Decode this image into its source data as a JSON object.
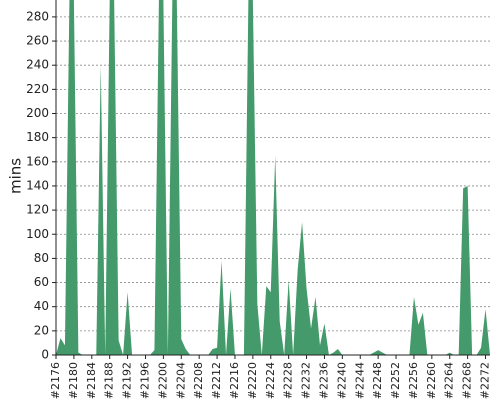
{
  "chart_data": {
    "type": "area",
    "ylabel": "mins",
    "xlabel": "",
    "ylim": [
      0,
      294
    ],
    "y_ticks": [
      0,
      20,
      40,
      60,
      80,
      100,
      120,
      140,
      160,
      180,
      200,
      220,
      240,
      260,
      280
    ],
    "x_tick_labels": [
      "#2176",
      "#2180",
      "#2184",
      "#2188",
      "#2192",
      "#2196",
      "#2200",
      "#2204",
      "#2208",
      "#2212",
      "#2216",
      "#2220",
      "#2224",
      "#2228",
      "#2232",
      "#2236",
      "#2240",
      "#2244",
      "#2248",
      "#2252",
      "#2256",
      "#2260",
      "#2264",
      "#2268",
      "#2272"
    ],
    "grid": true,
    "fill_color": "#449a6a",
    "x": [
      2176,
      2177,
      2178,
      2179,
      2180,
      2181,
      2182,
      2183,
      2184,
      2185,
      2186,
      2187,
      2188,
      2189,
      2190,
      2191,
      2192,
      2193,
      2194,
      2195,
      2196,
      2197,
      2198,
      2199,
      2200,
      2201,
      2202,
      2203,
      2204,
      2205,
      2206,
      2207,
      2208,
      2209,
      2210,
      2211,
      2212,
      2213,
      2214,
      2215,
      2216,
      2217,
      2218,
      2219,
      2220,
      2221,
      2222,
      2223,
      2224,
      2225,
      2226,
      2227,
      2228,
      2229,
      2230,
      2231,
      2232,
      2233,
      2234,
      2235,
      2236,
      2237,
      2238,
      2239,
      2240,
      2241,
      2242,
      2243,
      2244,
      2245,
      2246,
      2247,
      2248,
      2249,
      2250,
      2251,
      2252,
      2253,
      2254,
      2255,
      2256,
      2257,
      2258,
      2259,
      2260,
      2261,
      2262,
      2263,
      2264,
      2265,
      2266,
      2267,
      2268,
      2269,
      2270,
      2271,
      2272,
      2273
    ],
    "values": [
      0,
      14,
      8,
      300,
      300,
      2,
      0,
      0,
      0,
      0,
      240,
      0,
      300,
      300,
      12,
      0,
      52,
      0,
      0,
      0,
      0,
      0,
      4,
      300,
      300,
      0,
      300,
      300,
      13,
      5,
      0,
      0,
      0,
      0,
      0,
      5,
      6,
      78,
      0,
      55,
      0,
      0,
      0,
      300,
      300,
      42,
      0,
      57,
      52,
      165,
      28,
      0,
      62,
      0,
      70,
      110,
      55,
      22,
      48,
      8,
      26,
      0,
      2,
      5,
      0,
      0,
      0,
      0,
      0,
      0,
      0,
      2,
      4,
      2,
      0,
      0,
      0,
      0,
      0,
      0,
      48,
      25,
      35,
      0,
      0,
      0,
      0,
      0,
      2,
      0,
      0,
      138,
      140,
      0,
      0,
      6,
      38,
      0
    ]
  }
}
